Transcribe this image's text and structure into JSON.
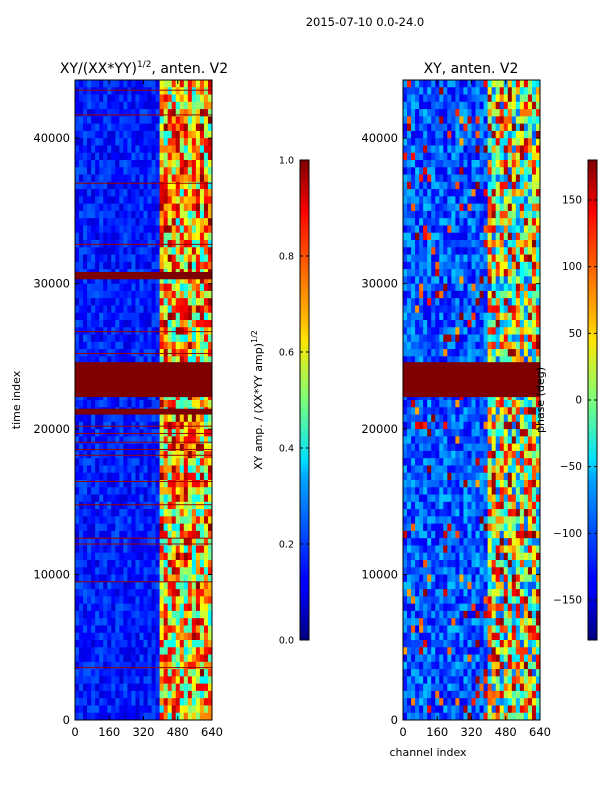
{
  "figure": {
    "suptitle": "2015-07-10 0.0-24.0"
  },
  "colors": {
    "jet_low": "#00007f",
    "jet_mid_low": "#0040ff",
    "jet_cyan": "#00ffff",
    "jet_yellow": "#ffff00",
    "jet_red": "#ff0000",
    "jet_high": "#7f0000",
    "background": "#ffffff",
    "axis": "#000000"
  },
  "chart_data": [
    {
      "type": "heatmap",
      "id": "left",
      "title": "XY/(XX*YY)",
      "title_exponent": "1/2",
      "title_suffix": ", anten. V2",
      "xlabel": "",
      "ylabel": "time index",
      "xlim": [
        0,
        640
      ],
      "ylim": [
        0,
        44000
      ],
      "xticks": [
        0,
        160,
        320,
        480,
        640
      ],
      "yticks": [
        0,
        10000,
        20000,
        30000,
        40000
      ],
      "flagged_time_bands": [
        [
          21000,
          21400
        ],
        [
          22200,
          24600
        ],
        [
          30300,
          30800
        ]
      ],
      "flagged_lines": [
        3600,
        9500,
        12100,
        12500,
        14800,
        16400,
        18200,
        18600,
        19100,
        19700,
        20200,
        25200,
        26700,
        32700,
        36900,
        41600,
        43300
      ],
      "active_channel_range": [
        400,
        640
      ],
      "colorbar": {
        "label": "XY amp. / (XX*YY amp)",
        "label_exponent": "1/2",
        "range": [
          0.0,
          1.0
        ],
        "ticks": [
          0.0,
          0.2,
          0.4,
          0.6,
          0.8,
          1.0
        ],
        "tick_labels": [
          "0.0",
          "0.2",
          "0.4",
          "0.6",
          "0.8",
          "1.0"
        ]
      }
    },
    {
      "type": "heatmap",
      "id": "right",
      "title": "XY, anten. V2",
      "xlabel": "channel index",
      "ylabel": "",
      "xlim": [
        0,
        640
      ],
      "ylim": [
        0,
        44000
      ],
      "xticks": [
        0,
        160,
        320,
        480,
        640
      ],
      "yticks": [
        0,
        10000,
        20000,
        30000,
        40000
      ],
      "flagged_time_bands": [
        [
          22200,
          24600
        ]
      ],
      "active_channel_range": [
        400,
        640
      ],
      "colorbar": {
        "label": "phase (deg)",
        "range": [
          -180,
          180
        ],
        "ticks": [
          -150,
          -100,
          -50,
          0,
          50,
          100,
          150
        ],
        "tick_labels": [
          "−150",
          "−100",
          "−50",
          "0",
          "50",
          "100",
          "150"
        ]
      }
    }
  ]
}
